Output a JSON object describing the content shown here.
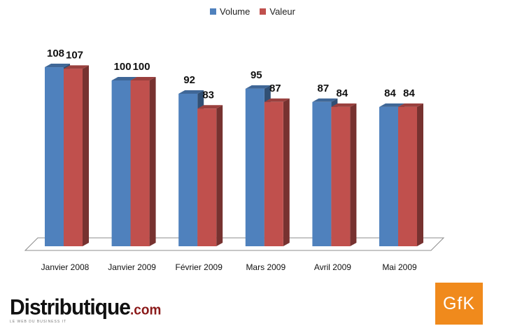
{
  "chart_data": {
    "type": "bar",
    "categories": [
      "Janvier 2008",
      "Janvier 2009",
      "Février 2009",
      "Mars 2009",
      "Avril 2009",
      "Mai 2009"
    ],
    "series": [
      {
        "name": "Volume",
        "values": [
          108,
          100,
          92,
          95,
          87,
          84
        ],
        "color": "#4f81bd"
      },
      {
        "name": "Valeur",
        "values": [
          107,
          100,
          83,
          87,
          84,
          84
        ],
        "color": "#c0504d"
      }
    ],
    "legend_position": "top",
    "grid": false,
    "style": "3d"
  },
  "legend": {
    "volume": "Volume",
    "valeur": "Valeur"
  },
  "logos": {
    "left_brand": "Distributique",
    "left_tld": ".com",
    "left_tagline": "LE WEB DU BUSINESS IT",
    "right": "GfK"
  }
}
